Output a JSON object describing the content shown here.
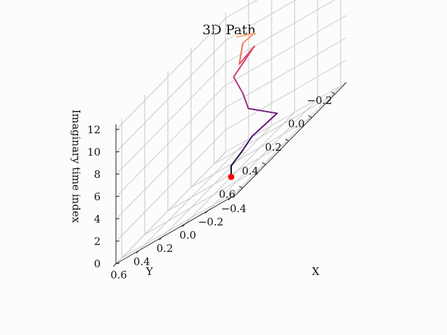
{
  "chart_data": {
    "type": "line",
    "projection": "3d",
    "title": "3D Path",
    "xlabel": "X",
    "ylabel": "Y",
    "zlabel": "Imaginary time index",
    "x_ticks": [
      "0.6",
      "0.4",
      "0.2",
      "0.0",
      "−0.2",
      "−0.4"
    ],
    "y_ticks": [
      "−0.2",
      "0.0",
      "0.2",
      "0.4",
      "0.6"
    ],
    "z_ticks": [
      "0",
      "2",
      "4",
      "6",
      "8",
      "10",
      "12"
    ],
    "colormap": "magma",
    "grid": true,
    "start_marker_color": "#ff0000",
    "points": [
      {
        "t": 0,
        "x": 0.0,
        "y": 0.25
      },
      {
        "t": 1,
        "x": 0.0,
        "y": 0.25
      },
      {
        "t": 2,
        "x": -0.15,
        "y": 0.3
      },
      {
        "t": 3,
        "x": -0.28,
        "y": 0.35
      },
      {
        "t": 4,
        "x": -0.55,
        "y": 0.4
      },
      {
        "t": 5,
        "x": -0.1,
        "y": 0.2
      },
      {
        "t": 6,
        "x": 0.1,
        "y": 0.05
      },
      {
        "t": 7,
        "x": 0.38,
        "y": -0.15
      },
      {
        "t": 8,
        "x": 0.35,
        "y": -0.3
      },
      {
        "t": 9,
        "x": 0.08,
        "y": 0.1
      },
      {
        "t": 10,
        "x": 0.2,
        "y": -0.05
      },
      {
        "t": 11,
        "x": -0.05,
        "y": 0.1
      },
      {
        "t": 12,
        "x": 0.0,
        "y": 0.2
      }
    ]
  }
}
